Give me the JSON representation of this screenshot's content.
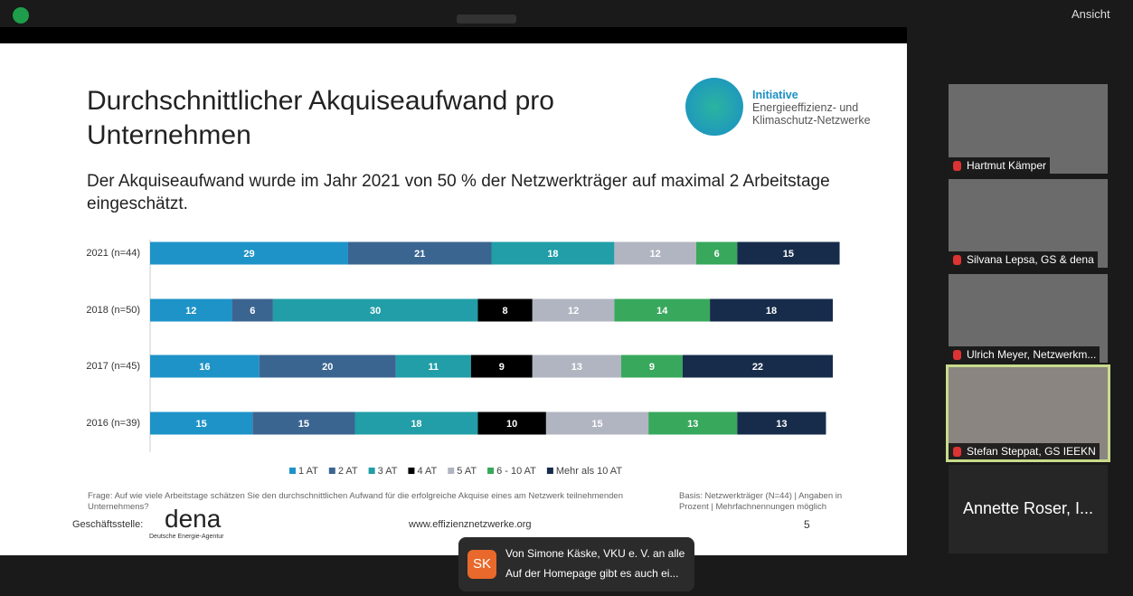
{
  "toolbar": {
    "view": "Ansicht"
  },
  "slide": {
    "logo_line1": "Initiative",
    "logo_line2": "Energieeffizienz- und",
    "logo_line3": "Klimaschutz-Netzwerke",
    "question": "Frage: Auf wie viele Arbeitstage schätzen Sie den durchschnittlichen Aufwand für die erfolgreiche Akquise eines am Netzwerk teilnehmenden Unternehmens?",
    "basis": "Basis: Netzwerkträger (N=44) | Angaben in Prozent | Mehrfachnennungen möglich",
    "office": "Geschäftsstelle:",
    "dena": "dena",
    "dena_full": "Deutsche Energie-Agentur",
    "url": "www.effizienznetzwerke.org",
    "page": "5"
  },
  "chart_data": {
    "type": "stacked-barh",
    "title": "Durchschnittlicher Akquiseaufwand pro Unternehmen",
    "subtitle": "Der Akquiseaufwand wurde im Jahr 2021 von 50 % der Netzwerkträger auf maximal 2 Arbeitstage eingeschätzt.",
    "categories": [
      "2021 (n=44)",
      "2018 (n=50)",
      "2017 (n=45)",
      "2016 (n=39)"
    ],
    "series": [
      {
        "name": "1 AT",
        "color": "#1e93c8",
        "values": [
          29,
          12,
          16,
          15
        ]
      },
      {
        "name": "2 AT",
        "color": "#3b6591",
        "values": [
          21,
          6,
          20,
          15
        ]
      },
      {
        "name": "3 AT",
        "color": "#219ea7",
        "values": [
          18,
          30,
          11,
          18
        ]
      },
      {
        "name": "4 AT",
        "color": "#000000",
        "values": [
          null,
          8,
          9,
          10
        ]
      },
      {
        "name": "5 AT",
        "color": "#b1b5c1",
        "values": [
          12,
          12,
          13,
          15
        ]
      },
      {
        "name": "6 - 10 AT",
        "color": "#38a85c",
        "values": [
          6,
          14,
          9,
          13
        ]
      },
      {
        "name": "Mehr als 10 AT",
        "color": "#172c4b",
        "values": [
          15,
          18,
          22,
          13
        ]
      }
    ],
    "legend": "bottom"
  },
  "participants": [
    "Hartmut Kämper",
    "Silvana Lepsa, GS & dena",
    "Ulrich Meyer, Netzwerkm...",
    "Stefan Steppat, GS IEEKN",
    "Annette Roser, IREES"
  ],
  "big_name": "Annette Roser, I...",
  "chat": {
    "avatar": "SK",
    "from": "Von Simone Käske, VKU e. V. an alle",
    "message": "Auf der Homepage gibt es auch ei..."
  }
}
